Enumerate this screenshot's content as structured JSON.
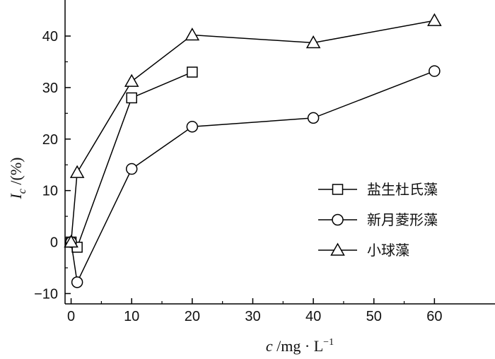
{
  "chart_data": {
    "type": "line",
    "title": "",
    "xlabel": "c /mg · L⁻¹",
    "ylabel": "I_c /(%)",
    "xlim": [
      -1,
      70
    ],
    "ylim": [
      -12,
      47
    ],
    "xticks": [
      0,
      10,
      20,
      30,
      40,
      50,
      60
    ],
    "yticks": [
      -10,
      0,
      10,
      20,
      30,
      40
    ],
    "grid": false,
    "legend_position": "right",
    "series": [
      {
        "name": "盐生杜氏藻",
        "marker": "square",
        "x": [
          0,
          1,
          10,
          20
        ],
        "y": [
          0,
          -1,
          28,
          33
        ]
      },
      {
        "name": "新月菱形藻",
        "marker": "circle",
        "x": [
          0,
          1,
          10,
          20,
          40,
          60
        ],
        "y": [
          0,
          -7.8,
          14.2,
          22.4,
          24.1,
          33.2
        ]
      },
      {
        "name": "小球藻",
        "marker": "triangle",
        "x": [
          0,
          1,
          10,
          20,
          40,
          60
        ],
        "y": [
          0,
          13.5,
          31.2,
          40.2,
          38.7,
          43
        ]
      }
    ]
  }
}
